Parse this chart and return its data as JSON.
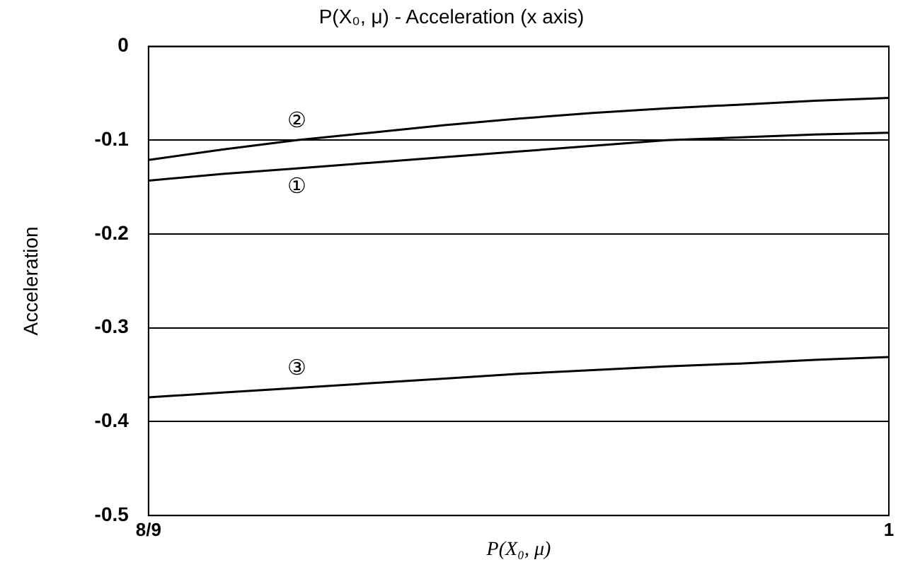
{
  "chart_data": {
    "type": "line",
    "title": "P(X₀, μ) - Acceleration (x axis)",
    "xlabel": "P(X₀, μ)",
    "ylabel": "Acceleration",
    "categories": [
      "8/9",
      null,
      null,
      null,
      null,
      null,
      null,
      null,
      null,
      null,
      "1"
    ],
    "series": [
      {
        "name": "①",
        "color": "#000000",
        "values": [
          -0.143,
          -0.136,
          -0.13,
          -0.124,
          -0.118,
          -0.112,
          -0.106,
          -0.1,
          -0.097,
          -0.094,
          -0.092
        ]
      },
      {
        "name": "②",
        "color": "#000000",
        "values": [
          -0.121,
          -0.11,
          -0.1,
          -0.092,
          -0.084,
          -0.077,
          -0.071,
          -0.066,
          -0.062,
          -0.058,
          -0.055
        ]
      },
      {
        "name": "③",
        "color": "#000000",
        "values": [
          -0.374,
          -0.369,
          -0.364,
          -0.359,
          -0.354,
          -0.349,
          -0.345,
          -0.341,
          -0.338,
          -0.334,
          -0.331
        ]
      }
    ],
    "ylim": [
      -0.5,
      0
    ],
    "yticks": [
      0,
      -0.1,
      -0.2,
      -0.3,
      -0.4,
      -0.5
    ],
    "grid": "y",
    "legend": false,
    "marker": "none",
    "line_style": "solid"
  }
}
